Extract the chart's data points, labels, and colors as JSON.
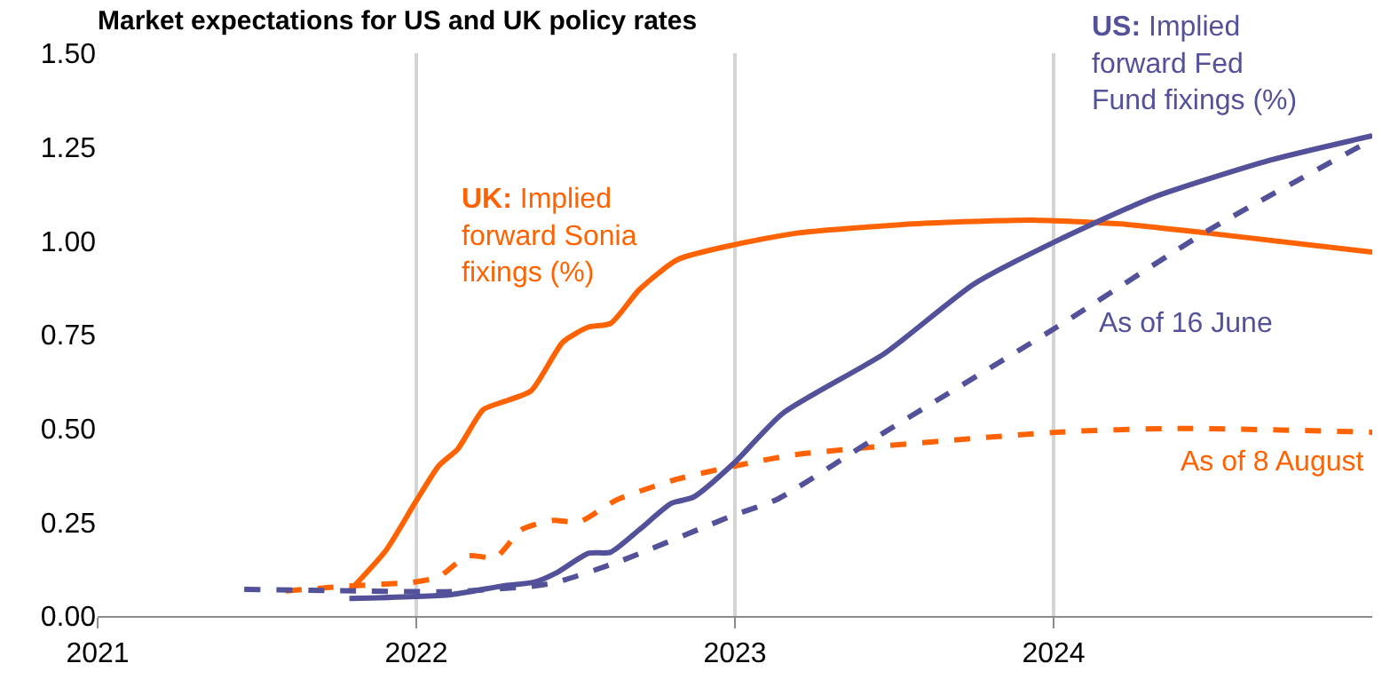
{
  "chart_data": {
    "type": "line",
    "title": "Market expectations for US and UK policy rates",
    "xlim": [
      2021,
      2025
    ],
    "xticks": [
      2021,
      2022,
      2023,
      2024
    ],
    "ylim": [
      0,
      1.5
    ],
    "yticks": [
      {
        "value": 0,
        "label": "0.00"
      },
      {
        "value": 0.25,
        "label": "0.25"
      },
      {
        "value": 0.5,
        "label": "0.50"
      },
      {
        "value": 0.75,
        "label": "0.75"
      },
      {
        "value": 1,
        "label": "1.00"
      },
      {
        "value": 1.25,
        "label": "1.25"
      },
      {
        "value": 1.5,
        "label": "1.50"
      }
    ],
    "grid": "x",
    "legend": false,
    "series": [
      {
        "name": "UK: Implied\nforward Sonia\nfixings (%)",
        "color": "#ff6200",
        "line_style": "solid",
        "x": [
          2021.79,
          2021.905,
          2021.995,
          2022.07,
          2022.13,
          2022.21,
          2022.27,
          2022.36,
          2022.46,
          2022.54,
          2022.61,
          2022.7,
          2022.82,
          2023.0,
          2023.19,
          2023.56,
          2023.93,
          2024.21,
          2024.49,
          2025.0
        ],
        "values": [
          0.066,
          0.175,
          0.3,
          0.4,
          0.445,
          0.55,
          0.57,
          0.6,
          0.73,
          0.77,
          0.78,
          0.87,
          0.95,
          0.99,
          1.02,
          1.045,
          1.055,
          1.045,
          1.02,
          0.97
        ]
      },
      {
        "name": "As of 8 August",
        "color": "#ff6200",
        "line_style": "dashed",
        "x": [
          2021.59,
          2021.79,
          2021.99,
          2022.07,
          2022.16,
          2022.25,
          2022.33,
          2022.43,
          2022.51,
          2022.63,
          2022.82,
          2023.0,
          2023.19,
          2024.01,
          2024.4,
          2025.0
        ],
        "values": [
          0.067,
          0.08,
          0.09,
          0.104,
          0.16,
          0.157,
          0.23,
          0.255,
          0.25,
          0.31,
          0.365,
          0.4,
          0.43,
          0.49,
          0.5,
          0.49
        ]
      },
      {
        "name": "US: Implied\nforward Fed\nFund fixings (%)",
        "color": "#525199",
        "line_style": "solid",
        "x": [
          2021.79,
          2022.11,
          2022.27,
          2022.37,
          2022.44,
          2022.54,
          2022.61,
          2022.7,
          2022.8,
          2022.87,
          2023.0,
          2023.15,
          2023.47,
          2023.75,
          2024.01,
          2024.31,
          2024.68,
          2025.0
        ],
        "values": [
          0.047,
          0.057,
          0.08,
          0.09,
          0.115,
          0.167,
          0.17,
          0.23,
          0.3,
          0.317,
          0.41,
          0.54,
          0.7,
          0.885,
          1.0,
          1.115,
          1.215,
          1.28
        ]
      },
      {
        "name": "As of 16 June",
        "color": "#525199",
        "line_style": "dashed",
        "x": [
          2021.46,
          2021.81,
          2022.11,
          2022.37,
          2022.44,
          2022.63,
          2023.0,
          2023.13,
          2023.47,
          2024.01,
          2024.49,
          2025.0
        ],
        "values": [
          0.071,
          0.067,
          0.065,
          0.08,
          0.09,
          0.143,
          0.27,
          0.31,
          0.49,
          0.77,
          1.03,
          1.27
        ]
      }
    ]
  }
}
